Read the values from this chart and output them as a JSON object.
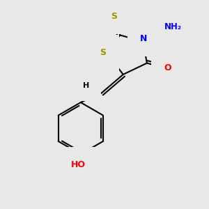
{
  "bg_color": "#e8e8e8",
  "bond_color": "#000000",
  "bond_width": 1.5,
  "atom_colors": {
    "S": "#999900",
    "N": "#0000ff",
    "O": "#ff0000",
    "H": "#000000",
    "C": "#000000"
  },
  "figsize": [
    3.0,
    3.0
  ],
  "dpi": 100,
  "xlim": [
    0,
    10
  ],
  "ylim": [
    0,
    10
  ]
}
